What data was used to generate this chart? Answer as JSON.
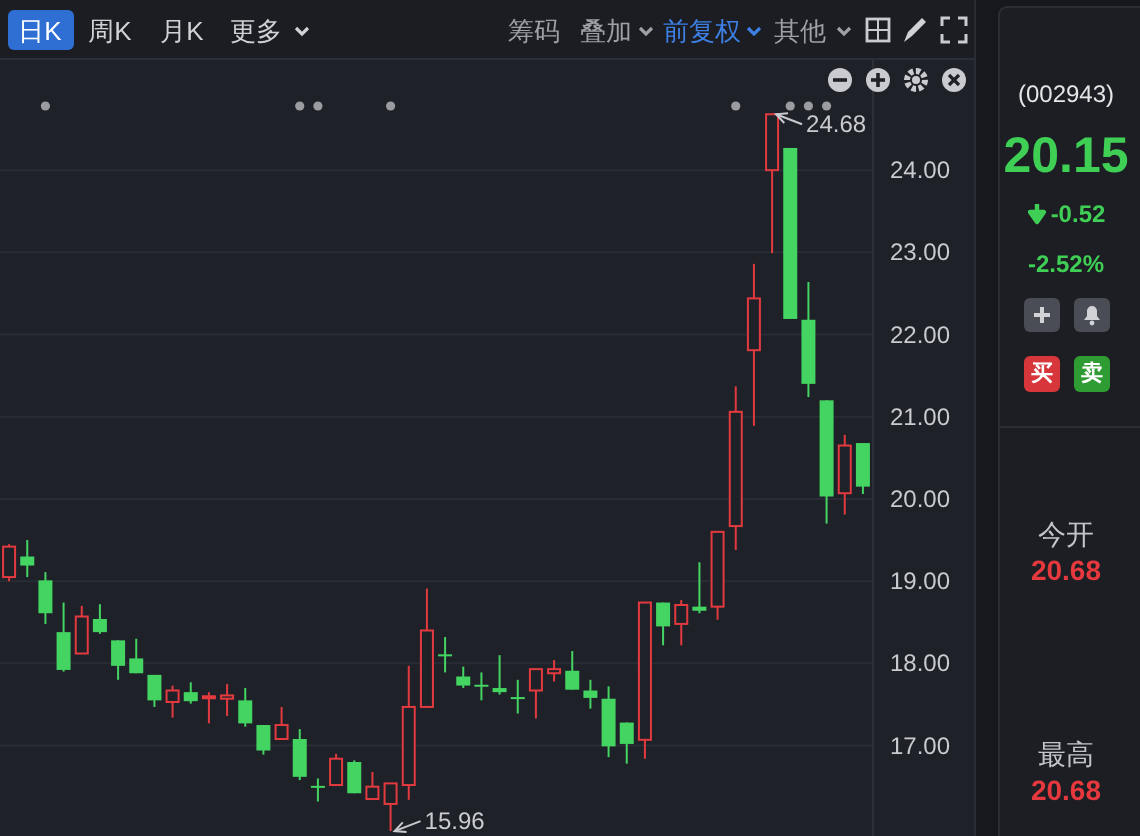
{
  "chart_data": [
    {
      "type": "candlestick",
      "categories": [
        null,
        null,
        null,
        null,
        null,
        null,
        null,
        null,
        null,
        null,
        null,
        null,
        null,
        null,
        null,
        null,
        null,
        null,
        null,
        null,
        null,
        null,
        null,
        null,
        null,
        null,
        null,
        null,
        null,
        null,
        null,
        null,
        null,
        null,
        null,
        null,
        null,
        null,
        null,
        null,
        null,
        null,
        null,
        null,
        null,
        null,
        null,
        null
      ],
      "ohlc": [
        [
          19.05,
          19.45,
          19.0,
          19.42
        ],
        [
          19.3,
          19.5,
          19.05,
          19.19
        ],
        [
          19.01,
          19.11,
          18.48,
          18.61
        ],
        [
          18.38,
          18.74,
          17.9,
          17.92
        ],
        [
          18.12,
          18.7,
          18.12,
          18.57
        ],
        [
          18.54,
          18.72,
          18.36,
          18.38
        ],
        [
          18.28,
          18.28,
          17.8,
          17.97
        ],
        [
          18.06,
          18.3,
          17.88,
          17.88
        ],
        [
          17.86,
          17.86,
          17.47,
          17.55
        ],
        [
          17.53,
          17.73,
          17.34,
          17.67
        ],
        [
          17.65,
          17.77,
          17.51,
          17.54
        ],
        [
          17.58,
          17.65,
          17.27,
          17.6
        ],
        [
          17.57,
          17.75,
          17.36,
          17.61
        ],
        [
          17.55,
          17.7,
          17.23,
          17.27
        ],
        [
          17.25,
          17.25,
          16.89,
          16.94
        ],
        [
          17.08,
          17.47,
          17.07,
          17.25
        ],
        [
          17.08,
          17.2,
          16.58,
          16.62
        ],
        [
          16.51,
          16.6,
          16.32,
          16.5
        ],
        [
          16.52,
          16.9,
          16.52,
          16.84
        ],
        [
          16.8,
          16.82,
          16.42,
          16.42
        ],
        [
          16.35,
          16.68,
          16.34,
          16.5
        ],
        [
          16.29,
          16.54,
          15.96,
          16.54
        ],
        [
          16.52,
          17.97,
          16.34,
          17.47
        ],
        [
          17.47,
          18.91,
          17.47,
          18.4
        ],
        [
          18.11,
          18.32,
          17.89,
          18.1
        ],
        [
          17.84,
          17.96,
          17.7,
          17.73
        ],
        [
          17.74,
          17.89,
          17.55,
          17.73
        ],
        [
          17.7,
          18.1,
          17.62,
          17.65
        ],
        [
          17.59,
          17.8,
          17.39,
          17.57
        ],
        [
          17.67,
          17.93,
          17.33,
          17.93
        ],
        [
          17.88,
          18.04,
          17.78,
          17.93
        ],
        [
          17.91,
          18.15,
          17.68,
          17.68
        ],
        [
          17.67,
          17.8,
          17.45,
          17.58
        ],
        [
          17.57,
          17.72,
          16.86,
          16.99
        ],
        [
          17.28,
          17.28,
          16.78,
          17.02
        ],
        [
          17.07,
          18.74,
          16.84,
          18.74
        ],
        [
          18.74,
          18.74,
          18.22,
          18.45
        ],
        [
          18.48,
          18.77,
          18.22,
          18.71
        ],
        [
          18.69,
          19.23,
          18.61,
          18.64
        ],
        [
          18.69,
          19.6,
          18.53,
          19.6
        ],
        [
          19.67,
          21.37,
          19.38,
          21.06
        ],
        [
          21.81,
          22.86,
          20.89,
          22.44
        ],
        [
          24.0,
          24.68,
          22.99,
          24.68
        ],
        [
          24.27,
          24.27,
          22.19,
          22.19
        ],
        [
          22.18,
          22.64,
          21.24,
          21.4
        ],
        [
          21.2,
          21.2,
          19.7,
          20.03
        ],
        [
          20.07,
          20.78,
          19.81,
          20.65
        ],
        [
          20.68,
          20.68,
          20.06,
          20.15
        ]
      ],
      "colors": [
        "#e23a3f",
        "#44d462",
        "#44d462",
        "#44d462",
        "#e23a3f",
        "#44d462",
        "#44d462",
        "#44d462",
        "#44d462",
        "#e23a3f",
        "#44d462",
        "#e23a3f",
        "#e23a3f",
        "#44d462",
        "#44d462",
        "#e23a3f",
        "#44d462",
        "#44d462",
        "#e23a3f",
        "#44d462",
        "#e23a3f",
        "#e23a3f",
        "#e23a3f",
        "#e23a3f",
        "#44d462",
        "#44d462",
        "#44d462",
        "#44d462",
        "#44d462",
        "#e23a3f",
        "#e23a3f",
        "#44d462",
        "#44d462",
        "#44d462",
        "#44d462",
        "#e23a3f",
        "#44d462",
        "#e23a3f",
        "#44d462",
        "#e23a3f",
        "#e23a3f",
        "#e23a3f",
        "#e23a3f",
        "#44d462",
        "#44d462",
        "#44d462",
        "#e23a3f",
        "#44d462"
      ],
      "ylim": [
        15.9,
        25.34
      ],
      "yticks": [
        {
          "value": 17,
          "label": "17.00"
        },
        {
          "value": 18,
          "label": "18.00"
        },
        {
          "value": 19,
          "label": "19.00"
        },
        {
          "value": 20,
          "label": "20.00"
        },
        {
          "value": 21,
          "label": "21.00"
        },
        {
          "value": 22,
          "label": "22.00"
        },
        {
          "value": 23,
          "label": "23.00"
        },
        {
          "value": 24,
          "label": "24.00"
        }
      ],
      "grid": "y",
      "tick_labels": "y",
      "annotations": [
        "日K",
        "周K",
        "月K",
        "更多",
        "筹码",
        "叠加",
        "前复权",
        "其他",
        "24.68",
        "15.96"
      ]
    },
    {
      "type": "other",
      "annotations": [
        "(002943)",
        "20.15",
        "-0.52",
        "-2.52%",
        "买",
        "卖",
        "今开",
        "20.68",
        "最高",
        "20.68"
      ]
    }
  ]
}
